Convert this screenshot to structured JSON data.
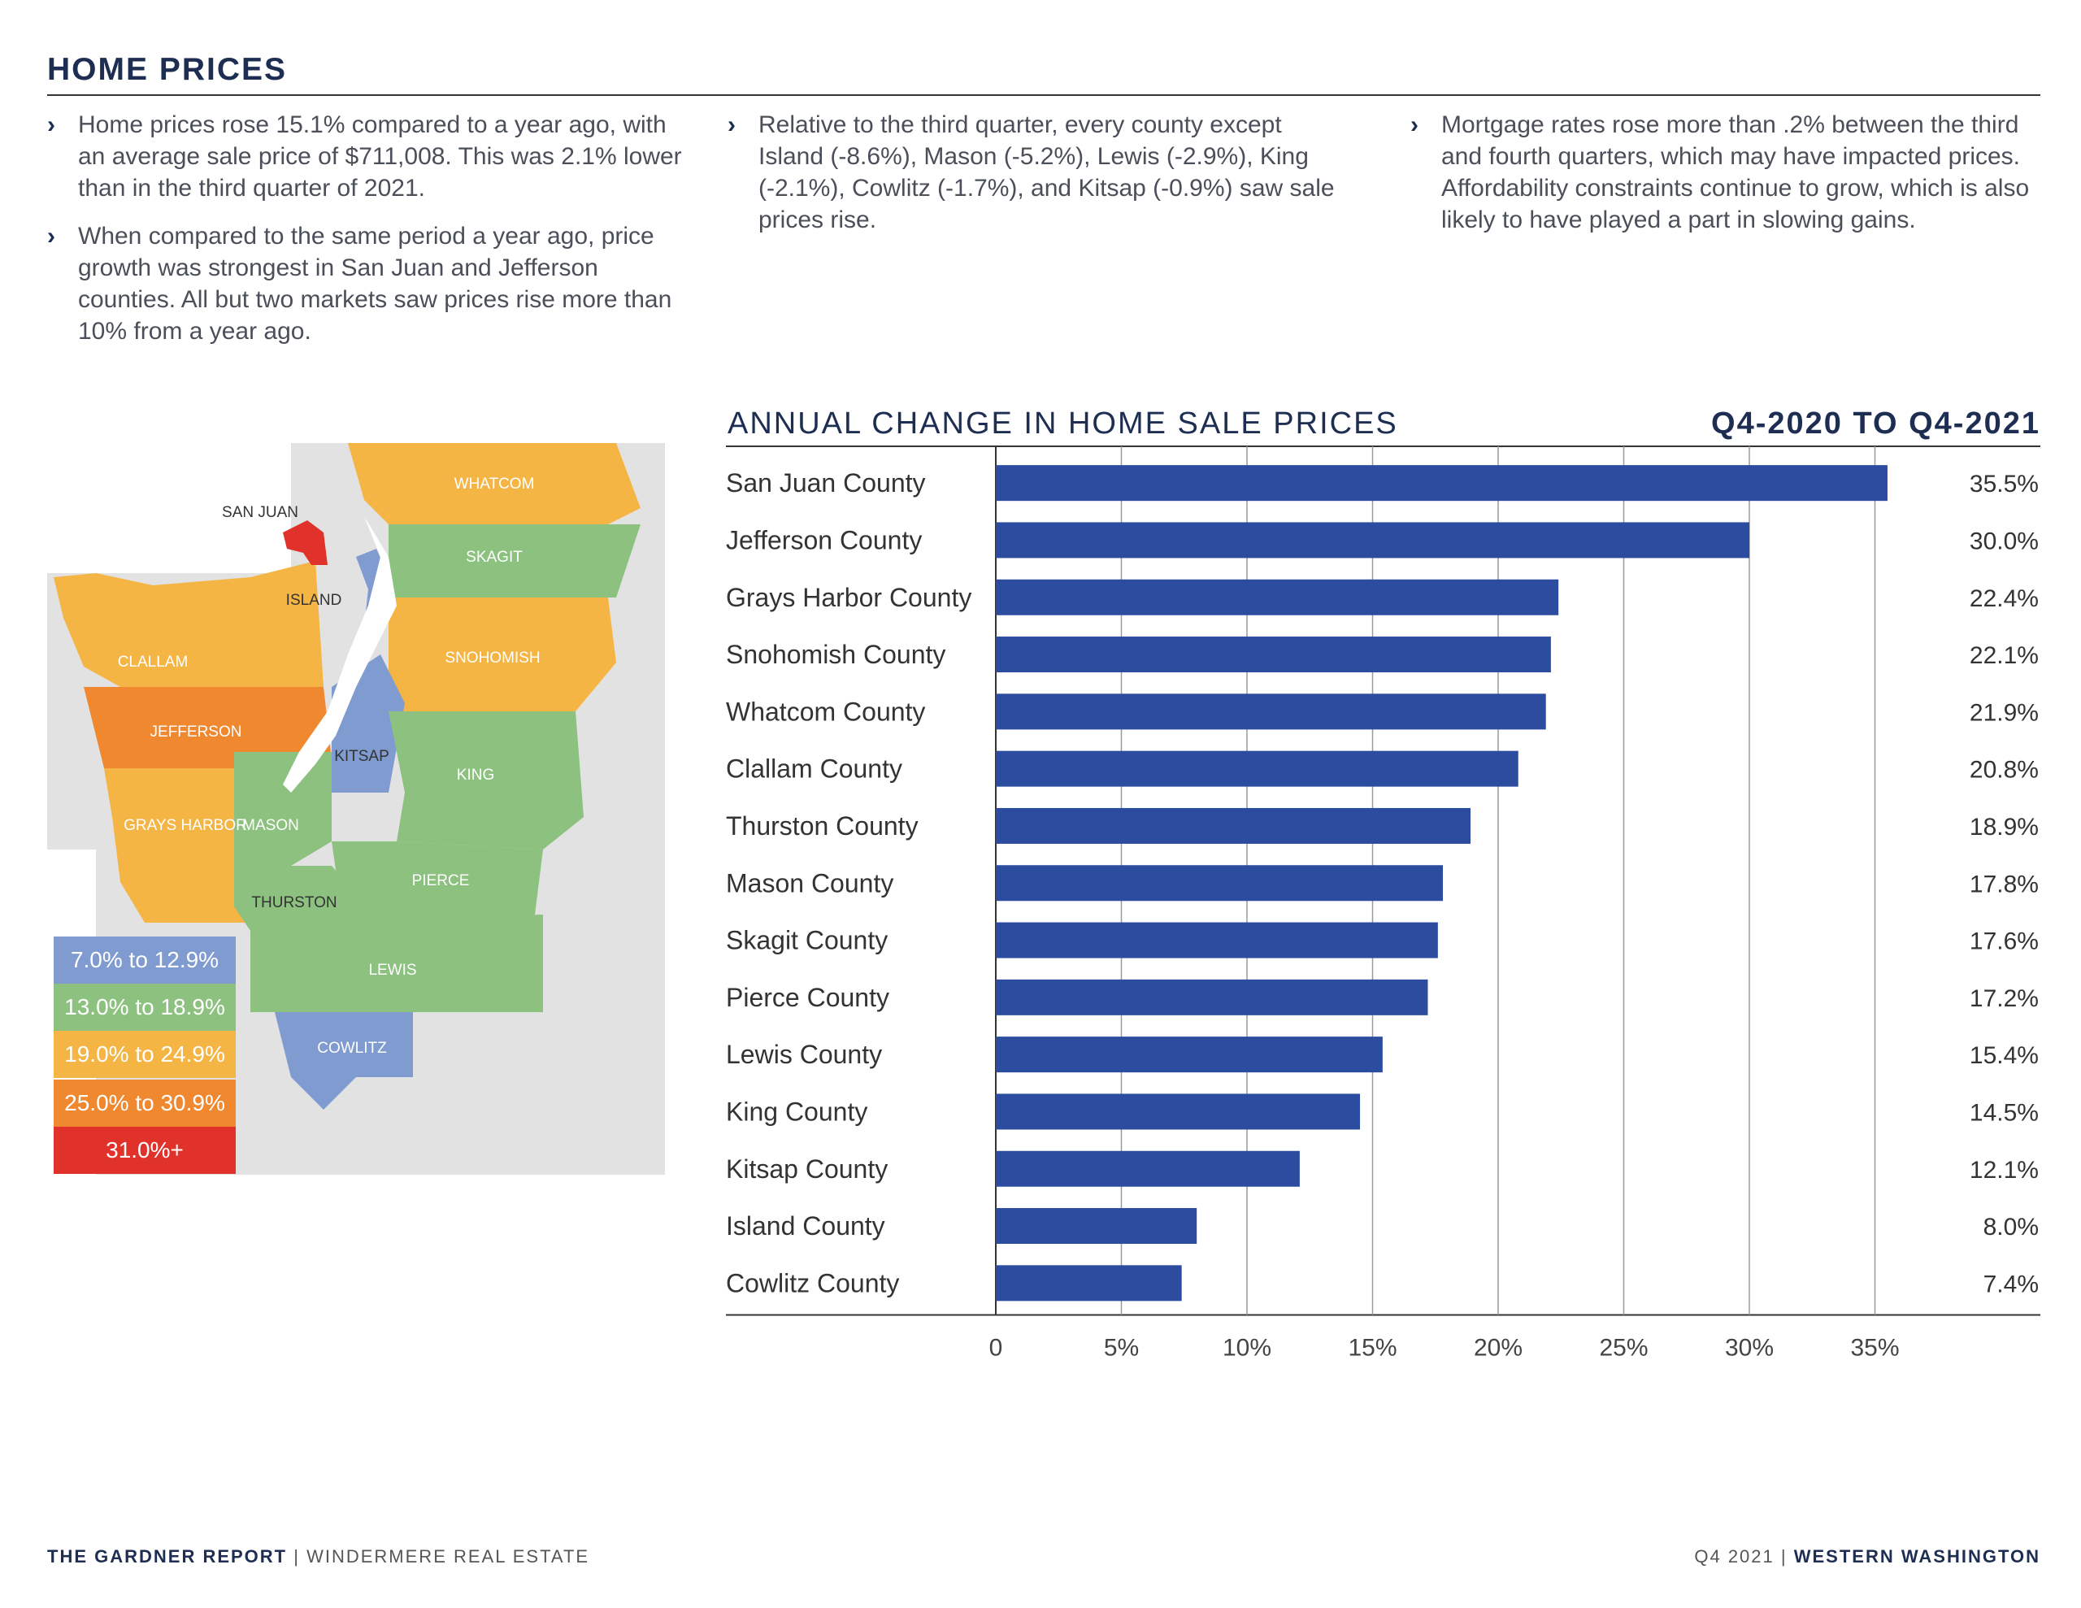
{
  "header": {
    "title": "HOME PRICES"
  },
  "bullets": {
    "col1": [
      "Home prices rose 15.1% compared to a year ago, with an average sale price of $711,008. This was 2.1% lower than in the third quarter of 2021.",
      "When compared to the same period a year ago, price growth was strongest in San Juan and Jefferson counties. All but two markets saw prices rise more than 10% from a year ago."
    ],
    "col2": [
      "Relative to the third quarter, every county except Island (-8.6%), Mason (-5.2%), Lewis (-2.9%), King (-2.1%), Cowlitz (-1.7%), and Kitsap (-0.9%) saw sale prices rise."
    ],
    "col3": [
      "Mortgage rates rose more than .2% between the third and fourth quarters, which may have impacted prices. Affordability constraints continue to grow, which is also likely to have played a part in slowing gains."
    ]
  },
  "chart_data": {
    "type": "bar",
    "orientation": "horizontal",
    "title": "ANNUAL CHANGE IN HOME SALE PRICES",
    "subtitle": "Q4-2020 TO Q4-2021",
    "categories": [
      "San Juan County",
      "Jefferson County",
      "Grays Harbor County",
      "Snohomish County",
      "Whatcom County",
      "Clallam County",
      "Thurston County",
      "Mason County",
      "Skagit County",
      "Pierce County",
      "Lewis County",
      "King County",
      "Kitsap County",
      "Island County",
      "Cowlitz County"
    ],
    "values": [
      35.5,
      30.0,
      22.4,
      22.1,
      21.9,
      20.8,
      18.9,
      17.8,
      17.6,
      17.2,
      15.4,
      14.5,
      12.1,
      8.0,
      7.4
    ],
    "value_labels": [
      "35.5%",
      "30.0%",
      "22.4%",
      "22.1%",
      "21.9%",
      "20.8%",
      "18.9%",
      "17.8%",
      "17.6%",
      "17.2%",
      "15.4%",
      "14.5%",
      "12.1%",
      "8.0%",
      "7.4%"
    ],
    "xlim": [
      0,
      35
    ],
    "xticks": [
      "0",
      "5%",
      "10%",
      "15%",
      "20%",
      "25%",
      "30%",
      "35%"
    ],
    "grid": true,
    "bar_color": "#2b4c9f"
  },
  "map": {
    "counties": [
      "WHATCOM",
      "SAN JUAN",
      "SKAGIT",
      "ISLAND",
      "SNOHOMISH",
      "CLALLAM",
      "JEFFERSON",
      "KITSAP",
      "KING",
      "GRAYS HARBOR",
      "MASON",
      "PIERCE",
      "THURSTON",
      "LEWIS",
      "COWLITZ"
    ],
    "colors": {
      "low": "#7f9bd0",
      "mid": "#8cc17f",
      "high": "#f4b545",
      "higher": "#f08830",
      "top": "#e0312a",
      "land": "#e2e2e2"
    },
    "legend": [
      "7.0% to 12.9%",
      "13.0% to 18.9%",
      "19.0% to 24.9%",
      "25.0% to 30.9%",
      "31.0%+"
    ]
  },
  "footer": {
    "left_bold": "THE GARDNER REPORT",
    "left_sep": "|",
    "left_rest": "WINDERMERE REAL ESTATE",
    "right_rest": "Q4 2021",
    "right_sep": "|",
    "right_bold": "WESTERN WASHINGTON"
  }
}
